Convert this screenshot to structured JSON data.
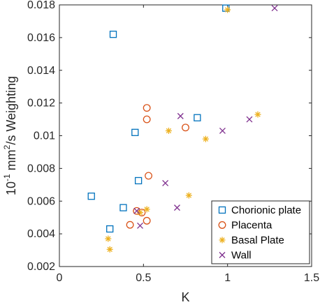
{
  "chart_data": {
    "type": "scatter",
    "title": "",
    "xlabel": "K",
    "ylabel_parts": {
      "base": "10",
      "base_exp": "-1",
      "unit_mid": " mm",
      "unit_exp": "2",
      "unit_tail": "/s Weighting"
    },
    "xlim": [
      0,
      1.5
    ],
    "ylim": [
      0.002,
      0.018
    ],
    "xticks": [
      0,
      0.5,
      1,
      1.5
    ],
    "xtick_labels": [
      "0",
      "0.5",
      "1",
      "1.5"
    ],
    "yticks": [
      0.002,
      0.004,
      0.006,
      0.008,
      0.01,
      0.012,
      0.014,
      0.016,
      0.018
    ],
    "ytick_labels": [
      "0.002",
      "0.004",
      "0.006",
      "0.008",
      "0.01",
      "0.012",
      "0.014",
      "0.016",
      "0.018"
    ],
    "grid": false,
    "legend_position": "bottom-right",
    "series": [
      {
        "name": "Chorionic plate",
        "marker": "square",
        "color": "#0072BD",
        "x": [
          0.32,
          0.99,
          0.45,
          0.82,
          0.19,
          0.47,
          0.38,
          0.3
        ],
        "y": [
          0.0162,
          0.0178,
          0.0102,
          0.0111,
          0.0063,
          0.00725,
          0.0056,
          0.0043
        ]
      },
      {
        "name": "Placenta",
        "marker": "circle",
        "color": "#D95319",
        "x": [
          0.52,
          0.52,
          0.75,
          0.53,
          0.46,
          0.49,
          0.42,
          0.52
        ],
        "y": [
          0.0117,
          0.011,
          0.0105,
          0.00755,
          0.0054,
          0.0053,
          0.00455,
          0.0048
        ]
      },
      {
        "name": "Basal Plate",
        "marker": "asterisk",
        "color": "#EDB120",
        "x": [
          1.0,
          1.18,
          0.65,
          0.87,
          0.77,
          0.52,
          0.48,
          0.29,
          0.3
        ],
        "y": [
          0.0177,
          0.0113,
          0.0103,
          0.0098,
          0.00635,
          0.0055,
          0.0053,
          0.0037,
          0.00305
        ]
      },
      {
        "name": "Wall",
        "marker": "x",
        "color": "#7E2F8E",
        "x": [
          1.28,
          0.72,
          0.97,
          1.13,
          0.63,
          0.7,
          0.46,
          0.48
        ],
        "y": [
          0.0178,
          0.0112,
          0.0103,
          0.011,
          0.0071,
          0.0056,
          0.0054,
          0.0045
        ]
      }
    ]
  }
}
